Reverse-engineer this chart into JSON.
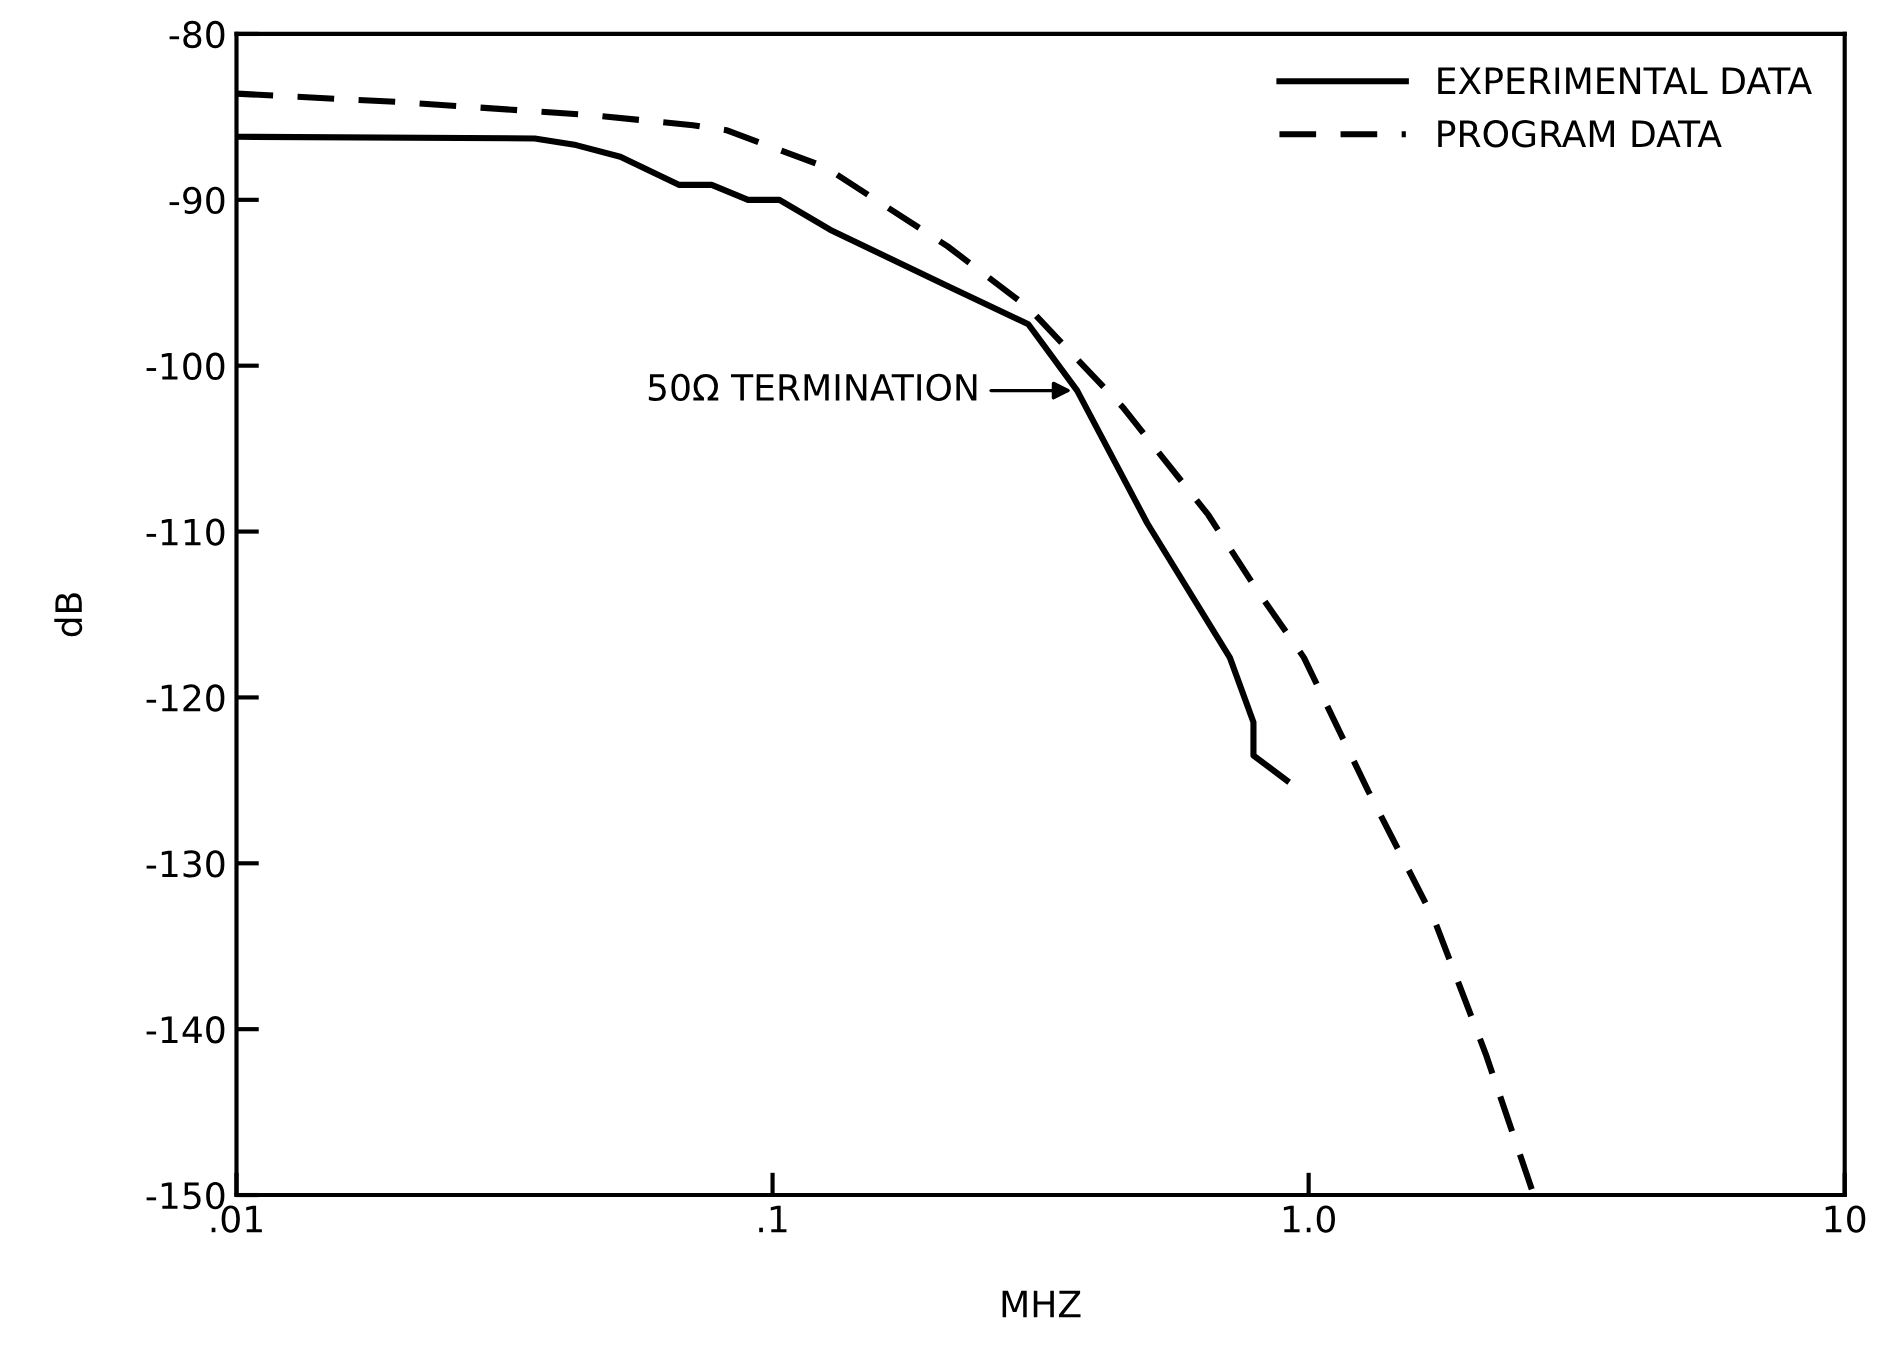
{
  "chart_data": {
    "type": "line",
    "xlabel": "MHZ",
    "ylabel": "dB",
    "log": "x",
    "xlim": [
      0.01,
      10
    ],
    "xticks": [
      {
        "value": 0.01,
        "label": ".01"
      },
      {
        "value": 0.1,
        "label": ".1"
      },
      {
        "value": 1,
        "label": "1.0"
      },
      10
    ],
    "ylim": [
      -150,
      -80
    ],
    "yticks": [
      -80,
      -90,
      -100,
      -110,
      -120,
      -130,
      -140,
      -150
    ],
    "grid": false,
    "legend": "top right",
    "marker": "none",
    "series": [
      {
        "name": "EXPERIMENTAL DATA",
        "color": "#000000",
        "line_style": "solid",
        "x": [
          0.01,
          0.036,
          0.043,
          0.052,
          0.067,
          0.077,
          0.09,
          0.103,
          0.128,
          0.212,
          0.3,
          0.37,
          0.5,
          0.713,
          0.789,
          0.789,
          0.91
        ],
        "values": [
          -86.2,
          -86.3,
          -86.7,
          -87.4,
          -89.1,
          -89.1,
          -90.0,
          -90.0,
          -91.8,
          -95.2,
          -97.5,
          -101.5,
          -109.5,
          -117.6,
          -121.5,
          -123.5,
          -125.0
        ]
      },
      {
        "name": "PROGRAM DATA",
        "color": "#000000",
        "line_style": "dashed",
        "x": [
          0.01,
          0.02,
          0.046,
          0.071,
          0.082,
          0.125,
          0.212,
          0.3,
          0.45,
          0.65,
          0.8,
          0.98,
          1.29,
          1.72,
          2.14,
          2.63
        ],
        "values": [
          -83.6,
          -84.1,
          -84.9,
          -85.5,
          -85.8,
          -88.0,
          -92.8,
          -96.5,
          -102.5,
          -109.0,
          -113.5,
          -117.6,
          -125.6,
          -133.5,
          -141.5,
          -150.0
        ]
      }
    ],
    "annotations": [
      {
        "text": "50Ω TERMINATION",
        "x": 0.37,
        "y": -101.5
      }
    ]
  }
}
